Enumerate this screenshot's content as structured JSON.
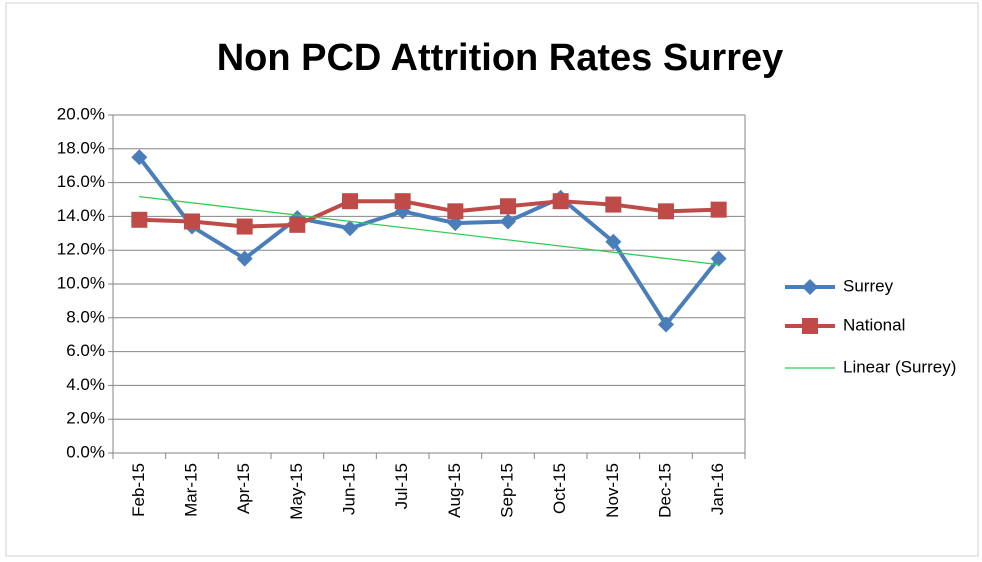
{
  "chart_data": {
    "type": "line",
    "title": "Non PCD Attrition Rates Surrey",
    "categories": [
      "Feb-15",
      "Mar-15",
      "Apr-15",
      "May-15",
      "Jun-15",
      "Jul-15",
      "Aug-15",
      "Sep-15",
      "Oct-15",
      "Nov-15",
      "Dec-15",
      "Jan-16"
    ],
    "series": [
      {
        "name": "Surrey",
        "color": "#4a7ebb",
        "marker": "diamond",
        "values": [
          17.5,
          13.4,
          11.5,
          13.9,
          13.3,
          14.3,
          13.6,
          13.7,
          15.1,
          12.5,
          7.6,
          11.5
        ],
        "trendline": {
          "name": "Linear (Surrey)",
          "color": "#33cc55"
        }
      },
      {
        "name": "National",
        "color": "#be4b48",
        "marker": "square",
        "values": [
          13.8,
          13.7,
          13.4,
          13.5,
          14.9,
          14.9,
          14.3,
          14.6,
          14.9,
          14.7,
          14.3,
          14.4
        ]
      }
    ],
    "ylim": [
      0,
      20
    ],
    "yticks": [
      {
        "value": 0,
        "label": "0.0%"
      },
      {
        "value": 2,
        "label": "2.0%"
      },
      {
        "value": 4,
        "label": "4.0%"
      },
      {
        "value": 6,
        "label": "6.0%"
      },
      {
        "value": 8,
        "label": "8.0%"
      },
      {
        "value": 10,
        "label": "10.0%"
      },
      {
        "value": 12,
        "label": "12.0%"
      },
      {
        "value": 14,
        "label": "14.0%"
      },
      {
        "value": 16,
        "label": "16.0%"
      },
      {
        "value": 18,
        "label": "18.0%"
      },
      {
        "value": 20,
        "label": "20.0%"
      }
    ],
    "grid": true,
    "legend": "right"
  }
}
